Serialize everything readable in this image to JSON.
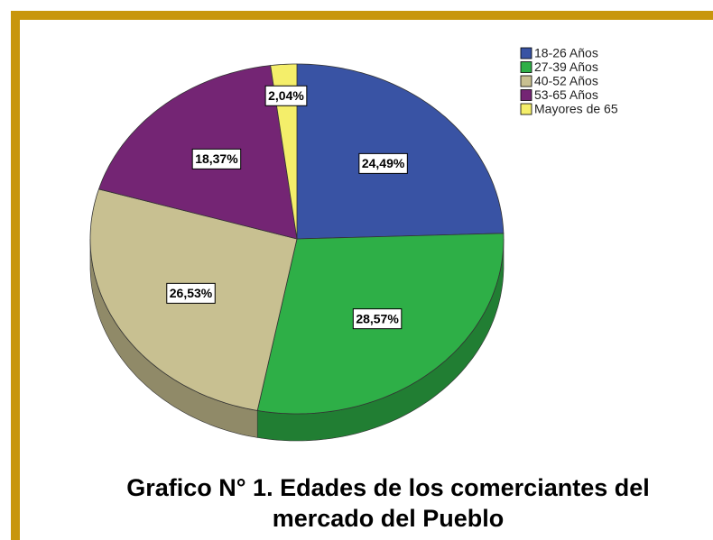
{
  "chart_data": {
    "type": "pie",
    "title": "Grafico N° 1. Edades de los comerciantes del mercado del Pueblo",
    "categories": [
      "18-26 Años",
      "27-39 Años",
      "40-52 Años",
      "53-65 Años",
      "Mayores de 65"
    ],
    "values": [
      24.49,
      28.57,
      26.53,
      18.37,
      2.04
    ],
    "value_labels": [
      "24,49%",
      "28,57%",
      "26,53%",
      "18,37%",
      "2,04%"
    ],
    "colors": [
      "#3953a4",
      "#2eaf47",
      "#c8c091",
      "#742574",
      "#f4ee6a"
    ],
    "legend": "top-right"
  }
}
